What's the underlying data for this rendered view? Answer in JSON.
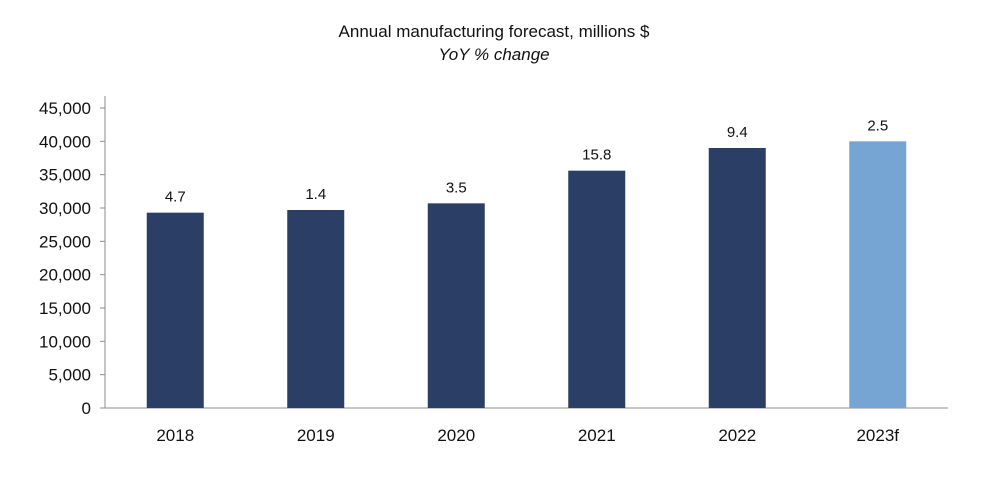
{
  "chart_data": {
    "type": "bar",
    "title": "Annual manufacturing forecast, millions $",
    "subtitle": "YoY % change",
    "xlabel": "",
    "ylabel": "",
    "categories": [
      "2018",
      "2019",
      "2020",
      "2021",
      "2022",
      "2023f"
    ],
    "values": [
      29300,
      29700,
      30700,
      35600,
      39000,
      40000
    ],
    "data_labels": [
      "4.7",
      "1.4",
      "3.5",
      "15.8",
      "9.4",
      "2.5"
    ],
    "ylim": [
      0,
      45000
    ],
    "y_ticks": [
      0,
      5000,
      10000,
      15000,
      20000,
      25000,
      30000,
      35000,
      40000,
      45000
    ],
    "y_tick_labels": [
      "0",
      "5,000",
      "10,000",
      "15,000",
      "20,000",
      "25,000",
      "30,000",
      "35,000",
      "40,000",
      "45,000"
    ],
    "grid": false,
    "legend": "none",
    "bar_colors": [
      "#2b3f66",
      "#2b3f66",
      "#2b3f66",
      "#2b3f66",
      "#2b3f66",
      "#76a5d4"
    ]
  }
}
